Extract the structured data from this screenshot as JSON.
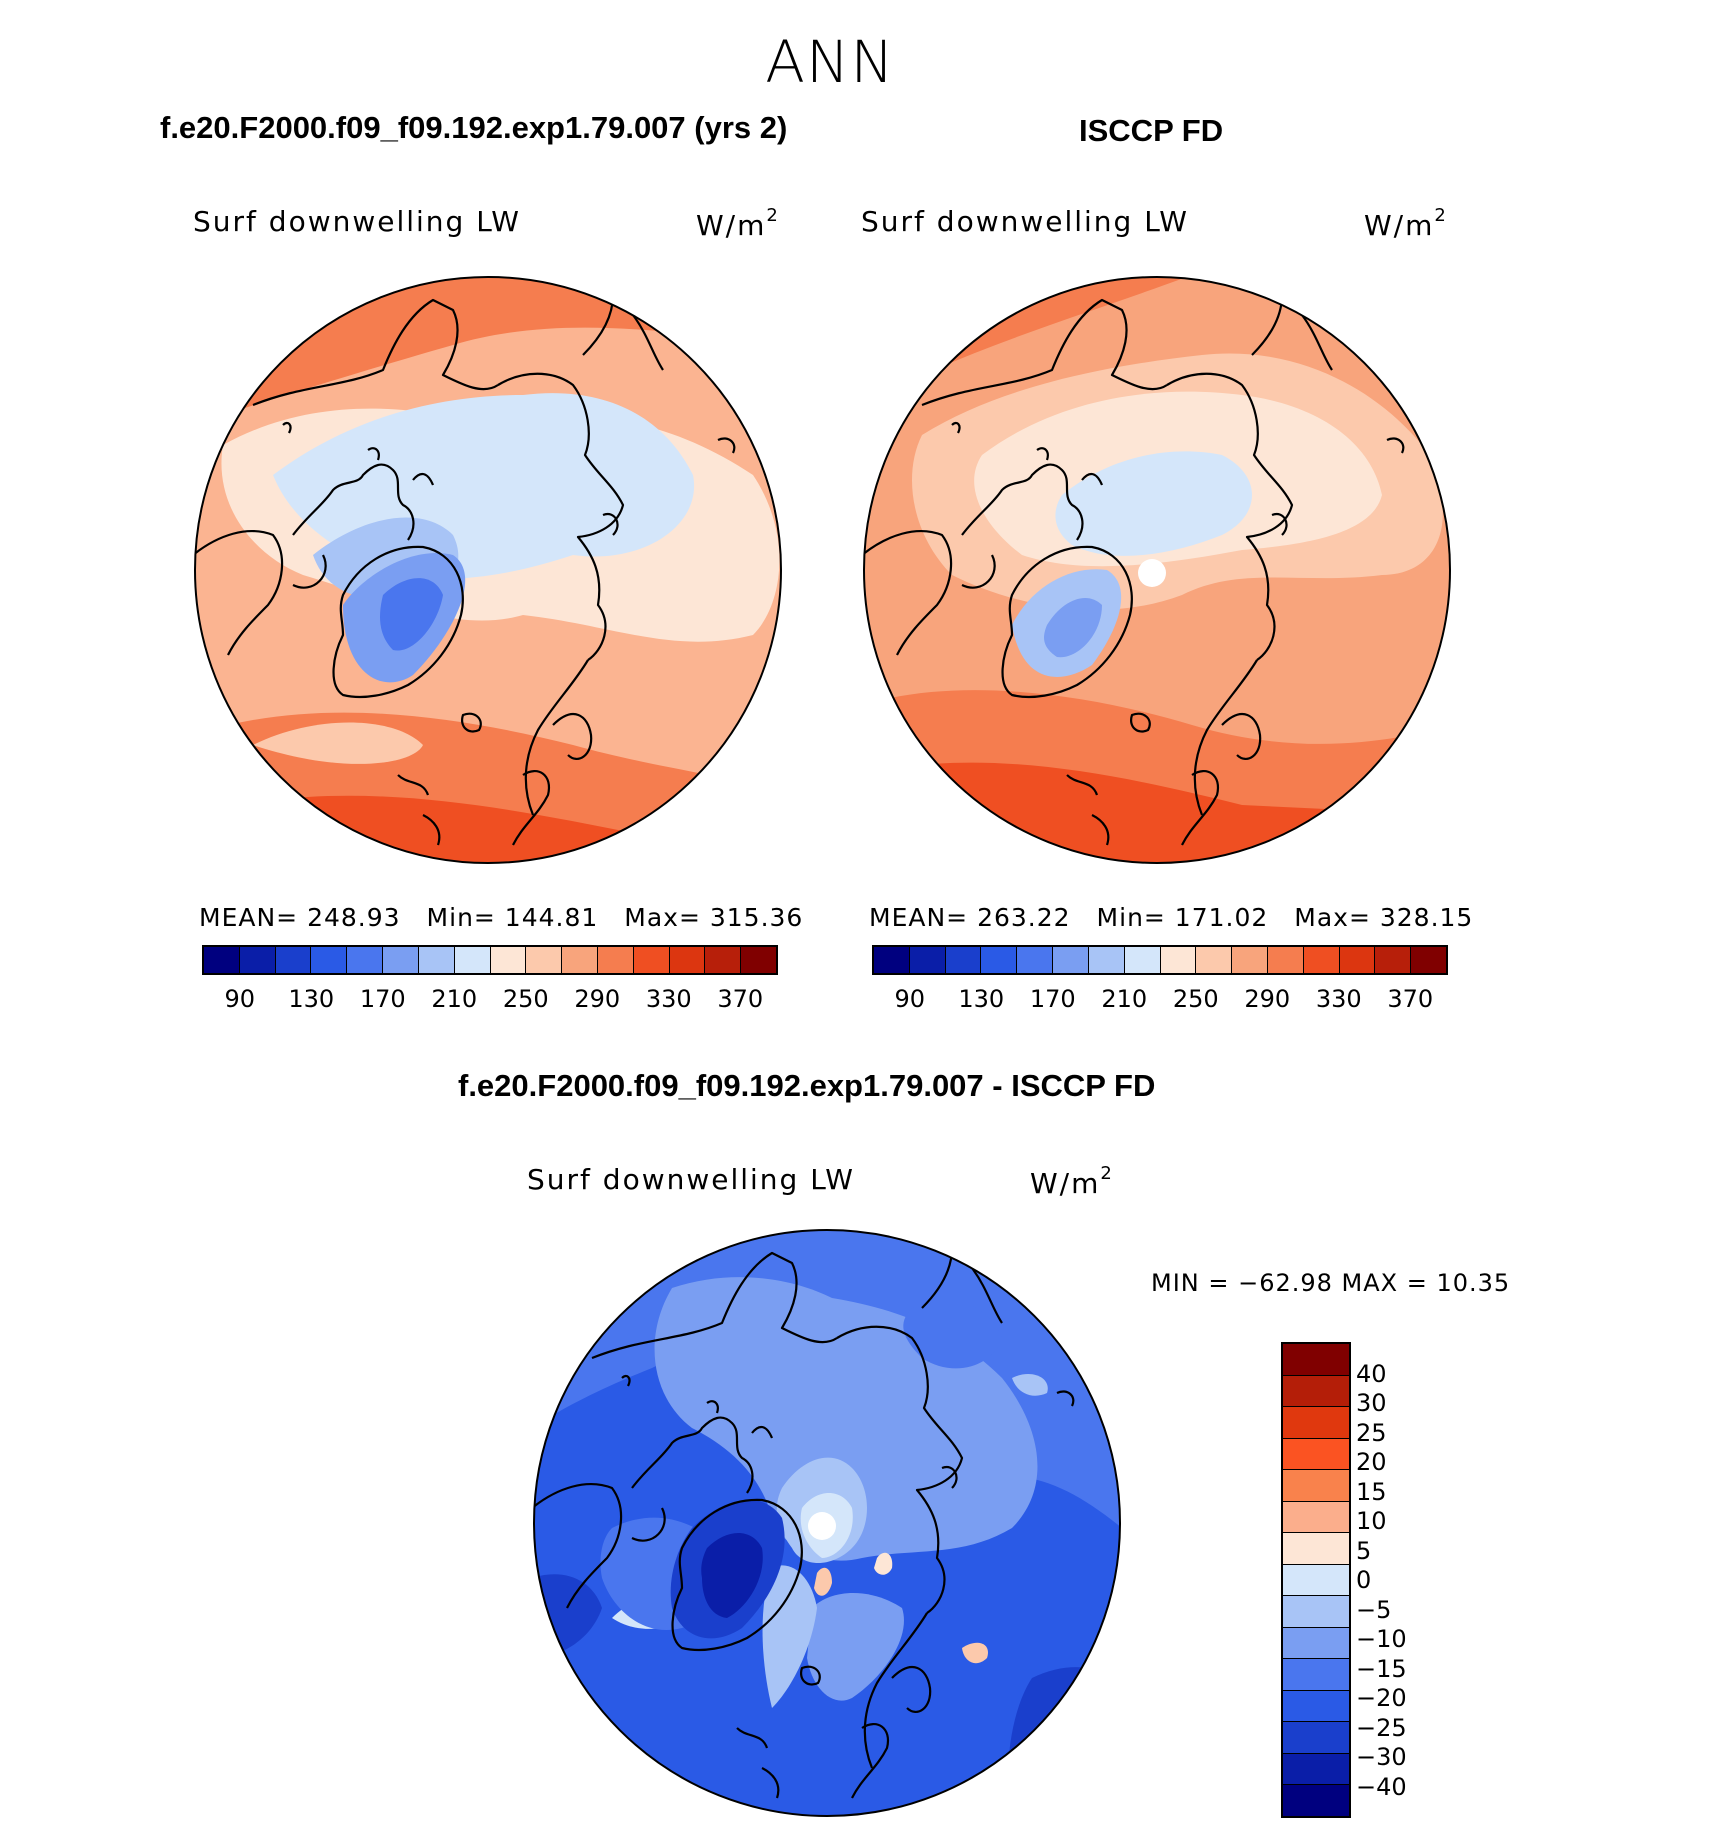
{
  "title": "ANN",
  "panels": [
    {
      "id": "model",
      "title": "f.e20.F2000.f09_f09.192.exp1.79.007 (yrs 2)",
      "variable": "Surf downwelling LW",
      "units_base": "W/m",
      "units_exp": "2",
      "stats": [
        "MEAN= 248.93",
        "Min= 144.81",
        "Max= 315.36"
      ]
    },
    {
      "id": "obs",
      "title": "ISCCP FD",
      "variable": "Surf downwelling LW",
      "units_base": "W/m",
      "units_exp": "2",
      "stats": [
        "MEAN= 263.22",
        "Min= 171.02",
        "Max= 328.15"
      ]
    },
    {
      "id": "diff",
      "title": "f.e20.F2000.f09_f09.192.exp1.79.007 - ISCCP FD",
      "variable": "Surf downwelling LW",
      "units_base": "W/m",
      "units_exp": "2",
      "minmax": "MIN  =  −62.98  MAX  =    10.35"
    }
  ],
  "colorbar_top": {
    "colors": [
      "#00007f",
      "#0a1ea8",
      "#1a3fcc",
      "#2a5ae6",
      "#4a76ee",
      "#7a9ef2",
      "#a8c4f6",
      "#d4e6fa",
      "#fde6d6",
      "#fcc9ac",
      "#f8a47c",
      "#f57d4f",
      "#ef4f22",
      "#dc3610",
      "#b71f0a",
      "#800000"
    ],
    "ticks": [
      "90",
      "130",
      "170",
      "210",
      "250",
      "290",
      "330",
      "370"
    ]
  },
  "colorbar_diff": {
    "colors": [
      "#800000",
      "#b41e08",
      "#e0380e",
      "#fb5322",
      "#f9824c",
      "#fbae8c",
      "#fde6d6",
      "#d4e6fa",
      "#a8c4f6",
      "#7a9ef2",
      "#4a76ee",
      "#2a5ae6",
      "#1a3fcc",
      "#0a1ea8",
      "#00007f"
    ],
    "ticks": [
      "40",
      "30",
      "25",
      "20",
      "15",
      "10",
      "5",
      "0",
      "−5",
      "−10",
      "−15",
      "−20",
      "−25",
      "−30",
      "−40"
    ]
  },
  "chart_data": [
    {
      "type": "heatmap",
      "title": "f.e20.F2000.f09_f09.192.exp1.79.007 (yrs 2)",
      "subtitle": "Surf downwelling LW",
      "units": "W/m2",
      "projection": "north polar stereographic",
      "levels": [
        90,
        130,
        170,
        210,
        250,
        290,
        330,
        370
      ],
      "mean": 248.93,
      "min": 144.81,
      "max": 315.36
    },
    {
      "type": "heatmap",
      "title": "ISCCP FD",
      "subtitle": "Surf downwelling LW",
      "units": "W/m2",
      "projection": "north polar stereographic",
      "levels": [
        90,
        130,
        170,
        210,
        250,
        290,
        330,
        370
      ],
      "mean": 263.22,
      "min": 171.02,
      "max": 328.15
    },
    {
      "type": "heatmap",
      "title": "f.e20.F2000.f09_f09.192.exp1.79.007 - ISCCP FD",
      "subtitle": "Surf downwelling LW",
      "units": "W/m2",
      "projection": "north polar stereographic",
      "levels": [
        -40,
        -30,
        -25,
        -20,
        -15,
        -10,
        -5,
        0,
        5,
        10,
        15,
        20,
        25,
        30,
        40
      ],
      "min": -62.98,
      "max": 10.35
    }
  ]
}
